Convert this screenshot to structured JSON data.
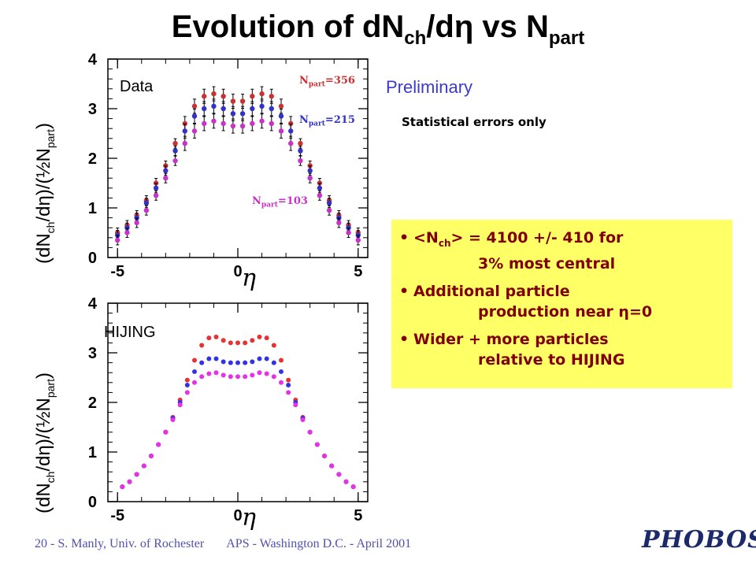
{
  "title": {
    "main": "Evolution of dN",
    "sub1": "ch",
    "mid": "/d",
    "eta": "η",
    "vs": " vs N",
    "sub2": "part"
  },
  "ylabel": {
    "pre": "(dN",
    "sub": "ch",
    "mid": "/dη)/(½N",
    "sub2": "part",
    "post": ")"
  },
  "xlabel": "η",
  "top_panel": {
    "tag": "Data",
    "preliminary": "Preliminary",
    "note": "Statistical errors only",
    "labels": [
      {
        "pre": "N",
        "sub": "part",
        "val": "=356",
        "color": "#c83232"
      },
      {
        "pre": "N",
        "sub": "part",
        "val": "=215",
        "color": "#3232c8"
      },
      {
        "pre": "N",
        "sub": "part",
        "val": "=103",
        "color": "#c832c8"
      }
    ]
  },
  "bottom_panel": {
    "tag": "HIJING"
  },
  "box": {
    "items": [
      {
        "bullet": "•",
        "line1a": "<N",
        "line1sub": "ch",
        "line1b": "> = 4100 +/- 410 for",
        "line2": "3% most central"
      },
      {
        "bullet": "•",
        "line1a": "Additional particle",
        "line1sub": "",
        "line1b": "",
        "line2": "production near η=0"
      },
      {
        "bullet": "•",
        "line1a": "Wider + more particles",
        "line1sub": "",
        "line1b": "",
        "line2": "relative to HIJING"
      }
    ],
    "color": "#ffff66"
  },
  "footer": {
    "left": "20 - S. Manly, Univ. of Rochester",
    "right": "APS - Washington D.C. - April 2001"
  },
  "logo": "PHOBOS",
  "chart_data": [
    {
      "type": "scatter",
      "title": "Data",
      "xlabel": "η",
      "ylabel": "(dNch/dη)/(½Npart)",
      "xlim": [
        -5.4,
        5.4
      ],
      "ylim": [
        0,
        4
      ],
      "xticks": [
        "-5",
        "0",
        "5"
      ],
      "yticks": [
        "0",
        "1",
        "2",
        "3",
        "4"
      ],
      "series": [
        {
          "name": "Npart=356",
          "color": "#c83232",
          "x": [
            -5.0,
            -4.6,
            -4.2,
            -3.8,
            -3.4,
            -3.0,
            -2.6,
            -2.2,
            -1.8,
            -1.4,
            -1.0,
            -0.6,
            -0.2,
            0.2,
            0.6,
            1.0,
            1.4,
            1.8,
            2.2,
            2.6,
            3.0,
            3.4,
            3.8,
            4.2,
            4.6,
            5.0
          ],
          "y": [
            0.5,
            0.65,
            0.85,
            1.15,
            1.5,
            1.85,
            2.3,
            2.7,
            3.05,
            3.25,
            3.3,
            3.25,
            3.15,
            3.15,
            3.25,
            3.3,
            3.25,
            3.05,
            2.7,
            2.3,
            1.85,
            1.5,
            1.15,
            0.85,
            0.65,
            0.5
          ]
        },
        {
          "name": "Npart=215",
          "color": "#3232c8",
          "x": [
            -5.0,
            -4.6,
            -4.2,
            -3.8,
            -3.4,
            -3.0,
            -2.6,
            -2.2,
            -1.8,
            -1.4,
            -1.0,
            -0.6,
            -0.2,
            0.2,
            0.6,
            1.0,
            1.4,
            1.8,
            2.2,
            2.6,
            3.0,
            3.4,
            3.8,
            4.2,
            4.6,
            5.0
          ],
          "y": [
            0.45,
            0.6,
            0.8,
            1.1,
            1.4,
            1.75,
            2.15,
            2.55,
            2.85,
            3.0,
            3.05,
            3.0,
            2.9,
            2.9,
            3.0,
            3.05,
            3.0,
            2.85,
            2.55,
            2.15,
            1.75,
            1.4,
            1.1,
            0.8,
            0.6,
            0.45
          ]
        },
        {
          "name": "Npart=103",
          "color": "#c832c8",
          "x": [
            -5.0,
            -4.6,
            -4.2,
            -3.8,
            -3.4,
            -3.0,
            -2.6,
            -2.2,
            -1.8,
            -1.4,
            -1.0,
            -0.6,
            -0.2,
            0.2,
            0.6,
            1.0,
            1.4,
            1.8,
            2.2,
            2.6,
            3.0,
            3.4,
            3.8,
            4.2,
            4.6,
            5.0
          ],
          "y": [
            0.35,
            0.5,
            0.7,
            0.95,
            1.25,
            1.6,
            1.95,
            2.3,
            2.55,
            2.7,
            2.75,
            2.7,
            2.65,
            2.65,
            2.7,
            2.75,
            2.7,
            2.55,
            2.3,
            1.95,
            1.6,
            1.25,
            0.95,
            0.7,
            0.5,
            0.35
          ]
        }
      ]
    },
    {
      "type": "scatter",
      "title": "HIJING",
      "xlabel": "η",
      "ylabel": "(dNch/dη)/(½Npart)",
      "xlim": [
        -5.4,
        5.4
      ],
      "ylim": [
        0,
        4
      ],
      "xticks": [
        "-5",
        "0",
        "5"
      ],
      "yticks": [
        "0",
        "1",
        "2",
        "3",
        "4"
      ],
      "series": [
        {
          "name": "Npart=356",
          "color": "#e63232",
          "x": [
            -4.8,
            -4.5,
            -4.2,
            -3.9,
            -3.6,
            -3.3,
            -3.0,
            -2.7,
            -2.4,
            -2.1,
            -1.8,
            -1.5,
            -1.2,
            -0.9,
            -0.6,
            -0.3,
            0.0,
            0.3,
            0.6,
            0.9,
            1.2,
            1.5,
            1.8,
            2.1,
            2.4,
            2.7,
            3.0,
            3.3,
            3.6,
            3.9,
            4.2,
            4.5,
            4.8
          ],
          "y": [
            0.3,
            0.4,
            0.55,
            0.72,
            0.92,
            1.15,
            1.4,
            1.7,
            2.05,
            2.45,
            2.85,
            3.15,
            3.3,
            3.32,
            3.25,
            3.2,
            3.2,
            3.2,
            3.25,
            3.32,
            3.3,
            3.15,
            2.85,
            2.45,
            2.05,
            1.7,
            1.4,
            1.15,
            0.92,
            0.72,
            0.55,
            0.4,
            0.3
          ]
        },
        {
          "name": "Npart=215",
          "color": "#3232e6",
          "x": [
            -4.8,
            -4.5,
            -4.2,
            -3.9,
            -3.6,
            -3.3,
            -3.0,
            -2.7,
            -2.4,
            -2.1,
            -1.8,
            -1.5,
            -1.2,
            -0.9,
            -0.6,
            -0.3,
            0.0,
            0.3,
            0.6,
            0.9,
            1.2,
            1.5,
            1.8,
            2.1,
            2.4,
            2.7,
            3.0,
            3.3,
            3.6,
            3.9,
            4.2,
            4.5,
            4.8
          ],
          "y": [
            0.3,
            0.4,
            0.55,
            0.72,
            0.92,
            1.15,
            1.4,
            1.68,
            2.0,
            2.35,
            2.62,
            2.8,
            2.88,
            2.88,
            2.82,
            2.8,
            2.8,
            2.8,
            2.82,
            2.88,
            2.88,
            2.8,
            2.62,
            2.35,
            2.0,
            1.68,
            1.4,
            1.15,
            0.92,
            0.72,
            0.55,
            0.4,
            0.3
          ]
        },
        {
          "name": "Npart=103",
          "color": "#e632e6",
          "x": [
            -4.8,
            -4.5,
            -4.2,
            -3.9,
            -3.6,
            -3.3,
            -3.0,
            -2.7,
            -2.4,
            -2.1,
            -1.8,
            -1.5,
            -1.2,
            -0.9,
            -0.6,
            -0.3,
            0.0,
            0.3,
            0.6,
            0.9,
            1.2,
            1.5,
            1.8,
            2.1,
            2.4,
            2.7,
            3.0,
            3.3,
            3.6,
            3.9,
            4.2,
            4.5,
            4.8
          ],
          "y": [
            0.3,
            0.4,
            0.55,
            0.72,
            0.92,
            1.15,
            1.4,
            1.65,
            1.95,
            2.2,
            2.4,
            2.52,
            2.58,
            2.6,
            2.55,
            2.52,
            2.52,
            2.52,
            2.55,
            2.6,
            2.58,
            2.52,
            2.4,
            2.2,
            1.95,
            1.65,
            1.4,
            1.15,
            0.92,
            0.72,
            0.55,
            0.4,
            0.3
          ]
        }
      ]
    }
  ]
}
